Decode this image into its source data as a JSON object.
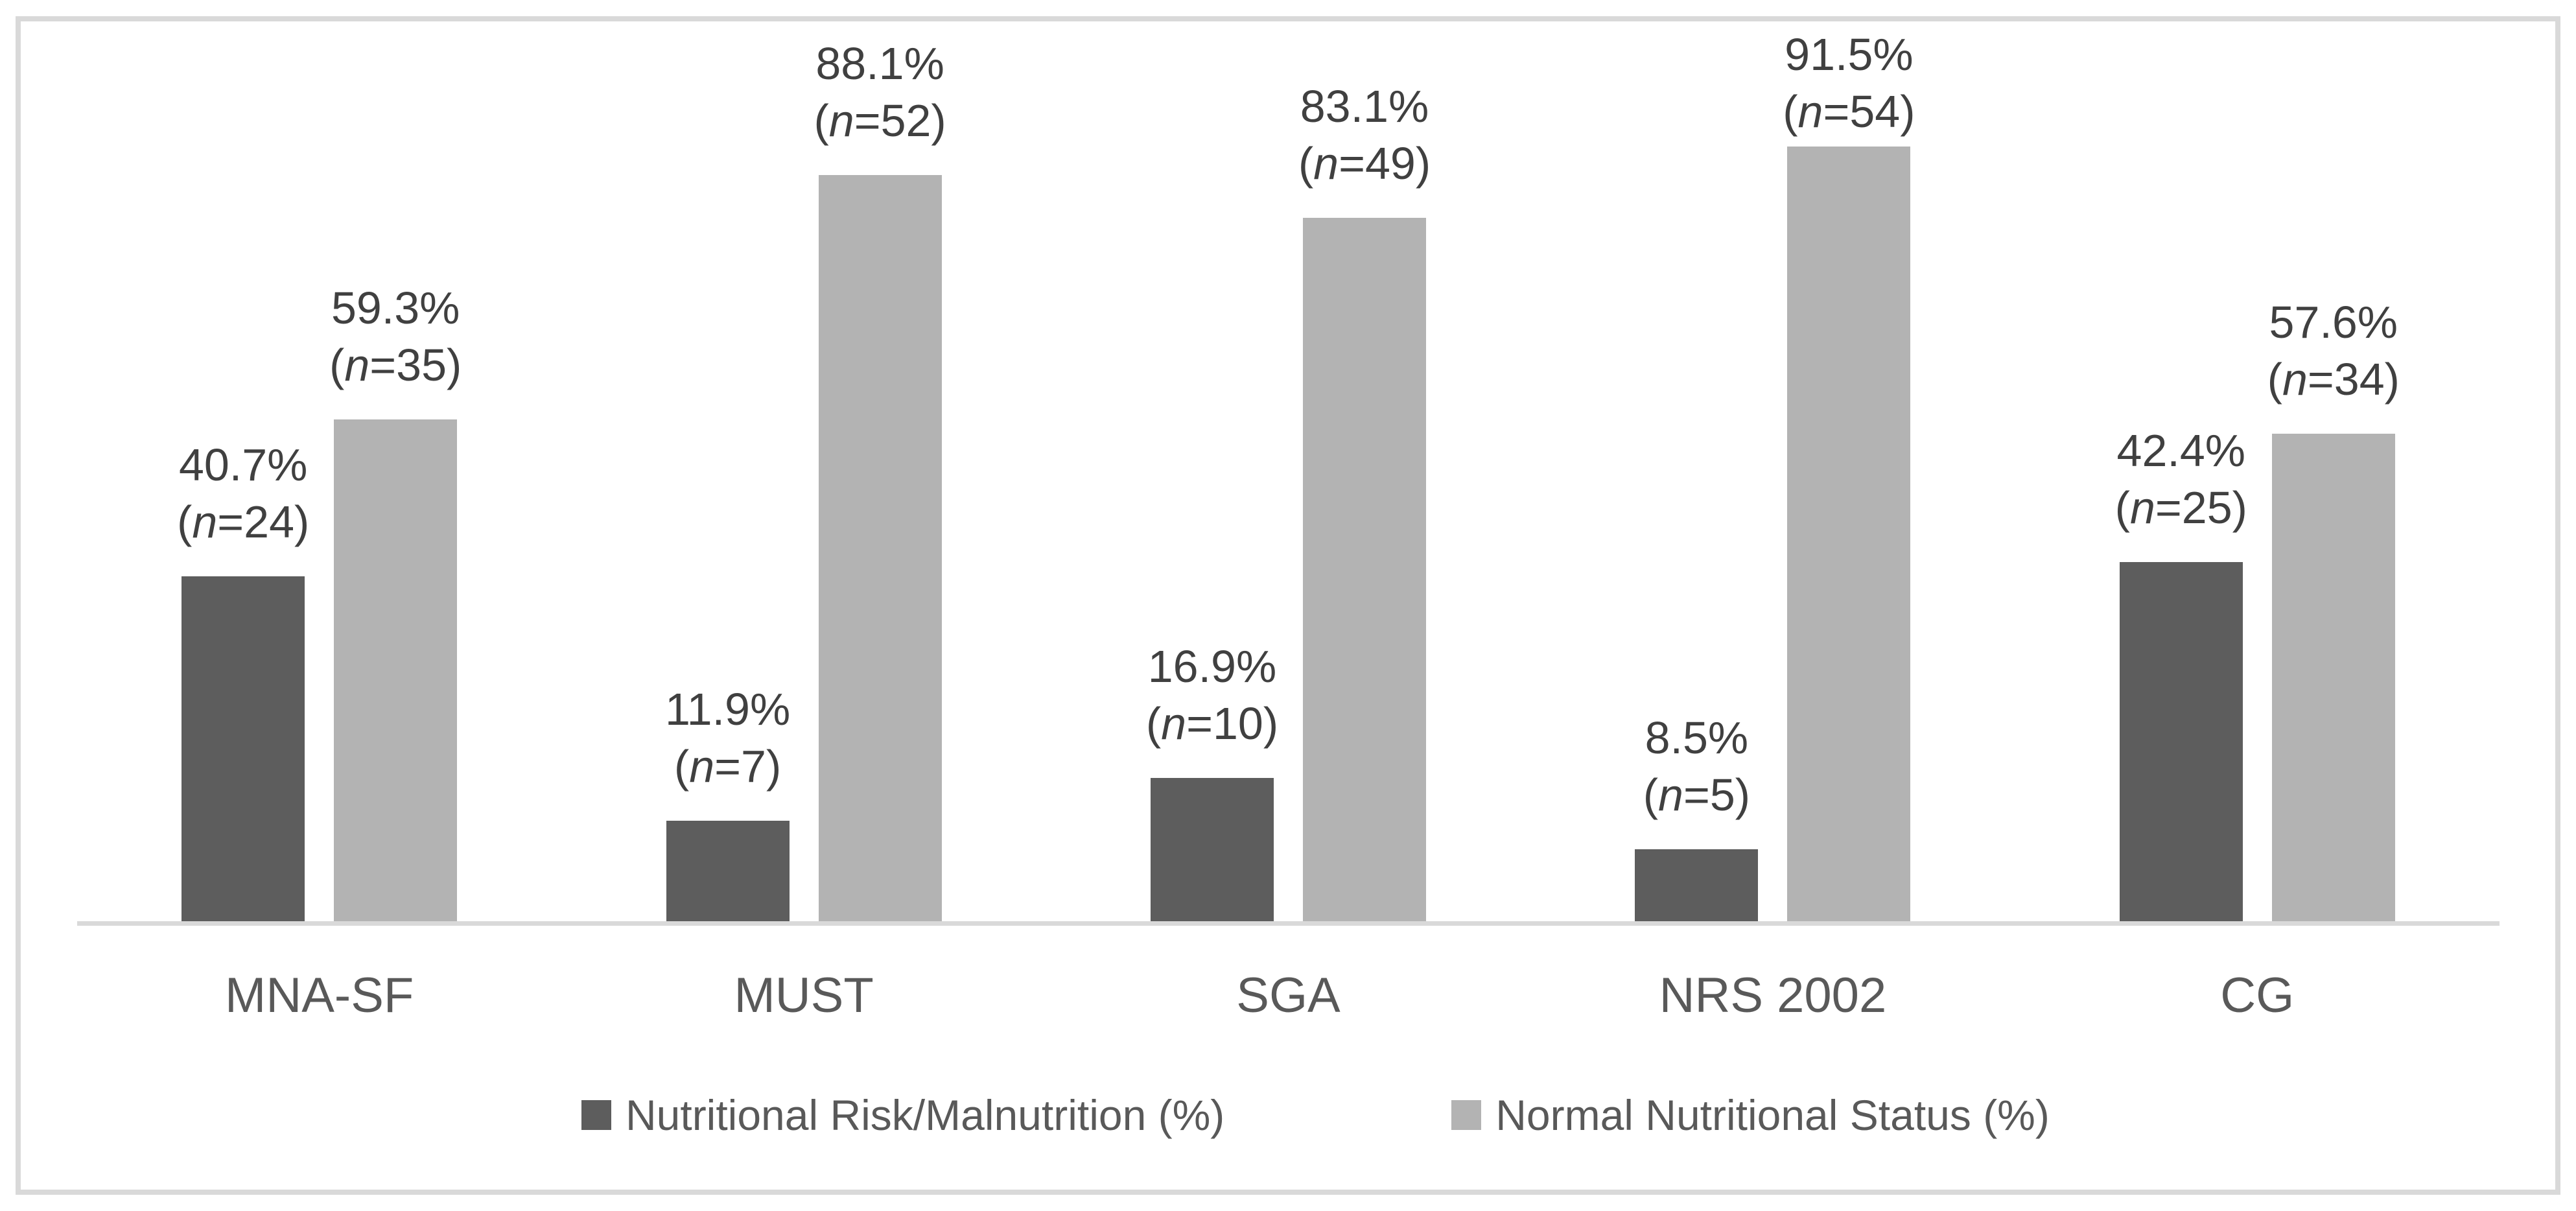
{
  "chart_data": {
    "type": "bar",
    "title": "",
    "xlabel": "",
    "ylabel": "",
    "categories": [
      "MNA-SF",
      "MUST",
      "SGA",
      "NRS 2002",
      "CG"
    ],
    "series": [
      {
        "name": "Nutritional Risk/Malnutrition (%)",
        "values": [
          40.7,
          11.9,
          16.9,
          8.5,
          42.4
        ],
        "n": [
          24,
          7,
          10,
          5,
          25
        ],
        "color": "#5d5d5d"
      },
      {
        "name": "Normal Nutritional Status (%)",
        "values": [
          59.3,
          88.1,
          83.1,
          91.5,
          57.6
        ],
        "n": [
          35,
          52,
          49,
          54,
          34
        ],
        "color": "#b3b3b3"
      }
    ],
    "data_label_format": "{value}% ({n_italic}={n})",
    "ylim": [
      0,
      100
    ],
    "grid": false,
    "y_axis_visible": false,
    "legend_position": "bottom",
    "colors": {
      "axis_line": "#d9d9d9",
      "frame_border": "#d9d9d9",
      "data_label_text": "#404040",
      "category_label_text": "#595959",
      "legend_text": "#595959",
      "background": "#ffffff"
    }
  }
}
